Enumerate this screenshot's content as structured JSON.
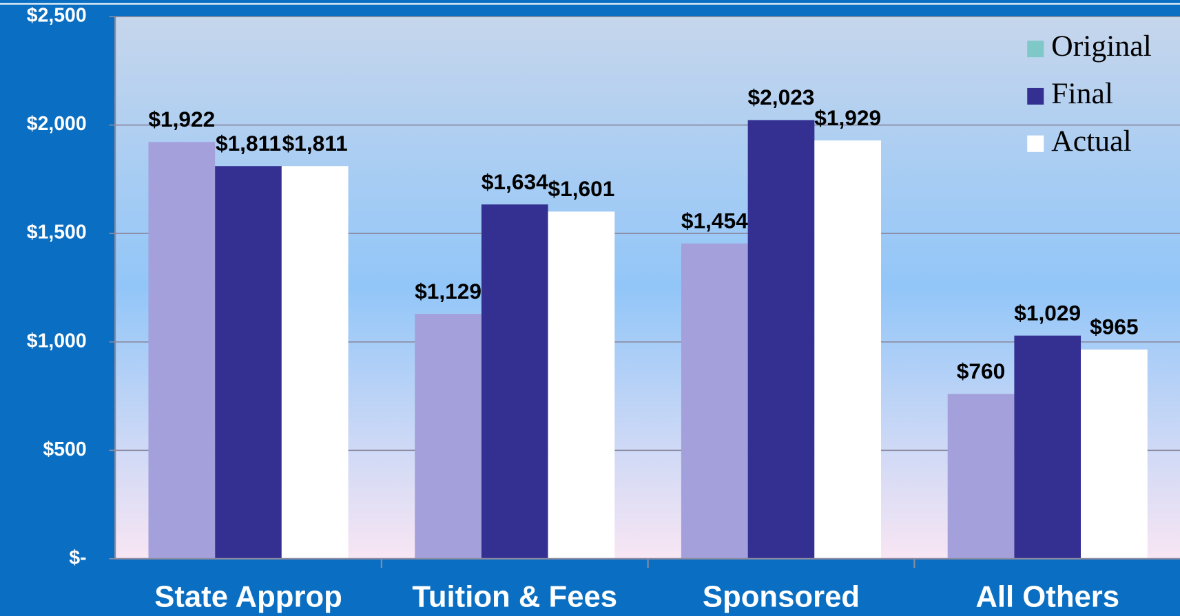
{
  "chart_data": {
    "type": "bar",
    "categories": [
      "State Approp",
      "Tuition & Fees",
      "Sponsored",
      "All Others"
    ],
    "series": [
      {
        "name": "Original",
        "color": "#a3a0dc",
        "legend_color": "#7ec8c8",
        "values": [
          1922,
          1129,
          1454,
          760
        ],
        "value_labels": [
          "$1,922",
          "$1,129",
          "$1,454",
          "$760"
        ]
      },
      {
        "name": "Final",
        "color": "#343092",
        "values": [
          1811,
          1634,
          2023,
          1029
        ],
        "value_labels": [
          "$1,811",
          "$1,634",
          "$2,023",
          "$1,029"
        ]
      },
      {
        "name": "Actual",
        "color": "#ffffff",
        "values": [
          1811,
          1601,
          1929,
          965
        ],
        "value_labels": [
          "$1,811",
          "$1,601",
          "$1,929",
          "$965"
        ]
      }
    ],
    "ylim": [
      0,
      2500
    ],
    "yticks": [
      {
        "value": 0,
        "label": "$-"
      },
      {
        "value": 500,
        "label": "$500"
      },
      {
        "value": 1000,
        "label": "$1,000"
      },
      {
        "value": 1500,
        "label": "$1,500"
      },
      {
        "value": 2000,
        "label": "$2,000"
      },
      {
        "value": 2500,
        "label": "$2,500"
      }
    ],
    "grid": true,
    "legend": "top-right"
  }
}
